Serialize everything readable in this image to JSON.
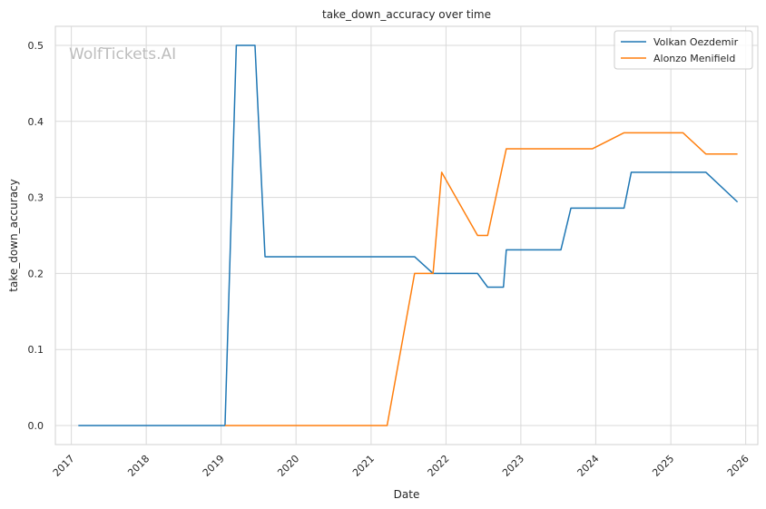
{
  "chart_data": {
    "type": "line",
    "title": "take_down_accuracy over time",
    "xlabel": "Date",
    "ylabel": "take_down_accuracy",
    "watermark": "WolfTickets.AI",
    "xlim": [
      "2016-10-15",
      "2026-03-01"
    ],
    "ylim": [
      -0.025,
      0.525
    ],
    "x_ticks": [
      "2017",
      "2018",
      "2019",
      "2020",
      "2021",
      "2022",
      "2023",
      "2024",
      "2025",
      "2026"
    ],
    "y_ticks": [
      "0.0",
      "0.1",
      "0.2",
      "0.3",
      "0.4",
      "0.5"
    ],
    "grid": true,
    "legend_position": "top-right",
    "series": [
      {
        "name": "Volkan Oezdemir",
        "color": "#1f77b4",
        "points": [
          [
            "2017-02-04",
            0.0
          ],
          [
            "2019-01-20",
            0.0
          ],
          [
            "2019-03-16",
            0.5
          ],
          [
            "2019-06-15",
            0.5
          ],
          [
            "2019-08-03",
            0.222
          ],
          [
            "2021-08-01",
            0.222
          ],
          [
            "2021-10-30",
            0.2
          ],
          [
            "2022-06-04",
            0.2
          ],
          [
            "2022-07-23",
            0.182
          ],
          [
            "2022-10-08",
            0.182
          ],
          [
            "2022-10-22",
            0.231
          ],
          [
            "2023-07-15",
            0.231
          ],
          [
            "2023-09-02",
            0.286
          ],
          [
            "2024-05-18",
            0.286
          ],
          [
            "2024-06-22",
            0.333
          ],
          [
            "2025-06-21",
            0.333
          ],
          [
            "2025-11-22",
            0.294
          ]
        ]
      },
      {
        "name": "Alonzo Menifield",
        "color": "#ff7f0e",
        "points": [
          [
            "2019-01-20",
            0.0
          ],
          [
            "2021-03-20",
            0.0
          ],
          [
            "2021-08-01",
            0.2
          ],
          [
            "2021-10-30",
            0.2
          ],
          [
            "2021-12-11",
            0.333
          ],
          [
            "2022-06-04",
            0.25
          ],
          [
            "2022-07-23",
            0.25
          ],
          [
            "2022-10-22",
            0.364
          ],
          [
            "2023-12-16",
            0.364
          ],
          [
            "2024-05-18",
            0.385
          ],
          [
            "2025-03-01",
            0.385
          ],
          [
            "2025-06-21",
            0.357
          ],
          [
            "2025-11-22",
            0.357
          ]
        ]
      }
    ]
  }
}
